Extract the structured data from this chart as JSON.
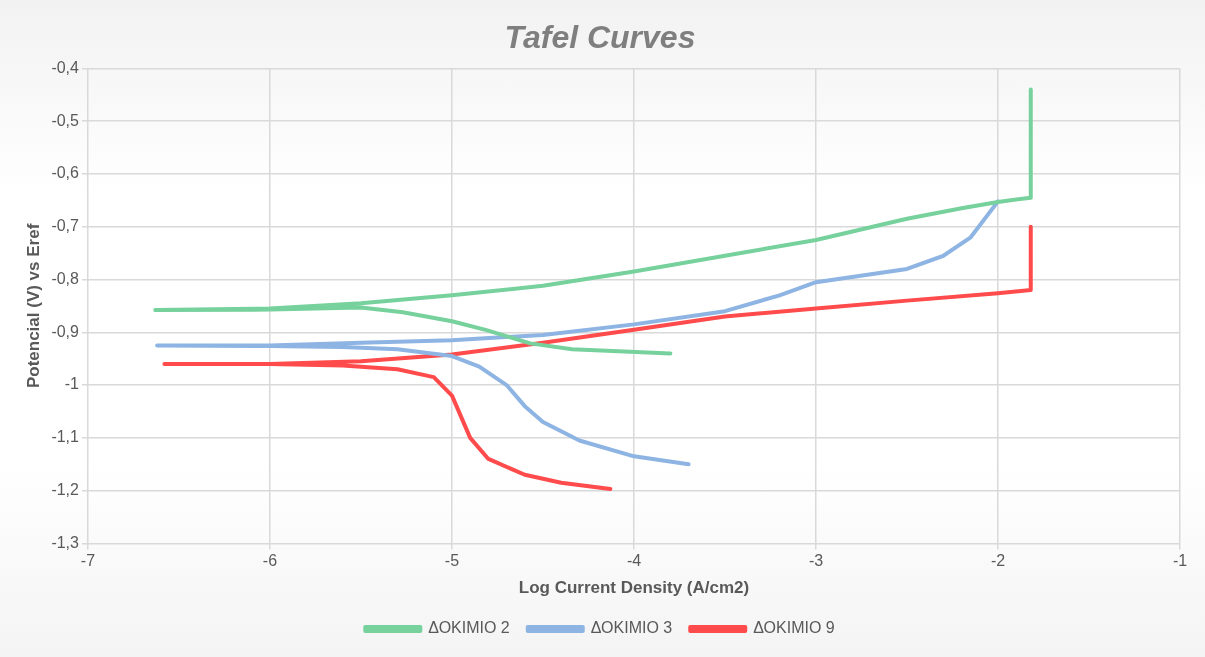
{
  "chart_data": {
    "type": "line",
    "title": "Tafel Curves",
    "xlabel": "Log Current Density (A/cm2)",
    "ylabel": "Potencial (V) vs Eref",
    "xlim": [
      -7,
      -1
    ],
    "xticks": [
      -7,
      -6,
      -5,
      -4,
      -3,
      -2,
      -1
    ],
    "ylim": [
      -1.3,
      -0.4
    ],
    "yticks": [
      {
        "value": -1.3,
        "label": "-1,3"
      },
      {
        "value": -1.2,
        "label": "-1,2"
      },
      {
        "value": -1.1,
        "label": "-1,1"
      },
      {
        "value": -1,
        "label": "-1"
      },
      {
        "value": -0.9,
        "label": "-0,9"
      },
      {
        "value": -0.8,
        "label": "-0,8"
      },
      {
        "value": -0.7,
        "label": "-0,7"
      },
      {
        "value": -0.6,
        "label": "-0,6"
      },
      {
        "value": -0.5,
        "label": "-0,5"
      },
      {
        "value": -0.4,
        "label": "-0,4"
      }
    ],
    "grid": true,
    "legend": "bottom",
    "marker": "none",
    "line_style": "solid",
    "series": [
      {
        "name": "ΔΟΚΙΜΙΟ 2",
        "color": "#77d19c",
        "x": [
          -3.8,
          -4.34,
          -4.57,
          -4.81,
          -5.0,
          -5.27,
          -5.5,
          -6.0,
          -6.63,
          -6.0,
          -5.5,
          -5.0,
          -4.5,
          -4.0,
          -3.5,
          -3.0,
          -2.5,
          -2.2,
          -2.0,
          -1.82,
          -1.82
        ],
        "values": [
          -0.94,
          -0.932,
          -0.921,
          -0.896,
          -0.879,
          -0.862,
          -0.853,
          -0.857,
          -0.858,
          -0.855,
          -0.845,
          -0.83,
          -0.812,
          -0.785,
          -0.755,
          -0.725,
          -0.685,
          -0.665,
          -0.653,
          -0.645,
          -0.44
        ]
      },
      {
        "name": "ΔΟΚΙΜΙΟ 3",
        "color": "#8db4e2",
        "x": [
          -3.7,
          -4.0,
          -4.3,
          -4.5,
          -4.6,
          -4.7,
          -4.85,
          -5.0,
          -5.3,
          -5.6,
          -6.0,
          -6.62,
          -6.0,
          -5.5,
          -5.0,
          -4.5,
          -4.0,
          -3.5,
          -3.2,
          -3.0,
          -2.5,
          -2.3,
          -2.15,
          -2.0
        ],
        "values": [
          -1.15,
          -1.135,
          -1.105,
          -1.07,
          -1.04,
          -1.0,
          -0.965,
          -0.945,
          -0.932,
          -0.928,
          -0.926,
          -0.925,
          -0.925,
          -0.92,
          -0.915,
          -0.905,
          -0.885,
          -0.86,
          -0.83,
          -0.805,
          -0.78,
          -0.755,
          -0.72,
          -0.652
        ]
      },
      {
        "name": "ΔΟΚΙΜΙΟ 9",
        "color": "#ff4b4b",
        "x": [
          -4.13,
          -4.4,
          -4.6,
          -4.8,
          -4.9,
          -5.0,
          -5.1,
          -5.3,
          -5.6,
          -6.0,
          -6.58,
          -6.0,
          -5.5,
          -5.0,
          -4.5,
          -4.0,
          -3.5,
          -3.0,
          -2.5,
          -2.0,
          -1.82,
          -1.82
        ],
        "values": [
          -1.197,
          -1.185,
          -1.17,
          -1.14,
          -1.1,
          -1.02,
          -0.985,
          -0.97,
          -0.963,
          -0.96,
          -0.96,
          -0.96,
          -0.955,
          -0.942,
          -0.92,
          -0.895,
          -0.87,
          -0.855,
          -0.84,
          -0.826,
          -0.82,
          -0.7
        ]
      }
    ]
  }
}
